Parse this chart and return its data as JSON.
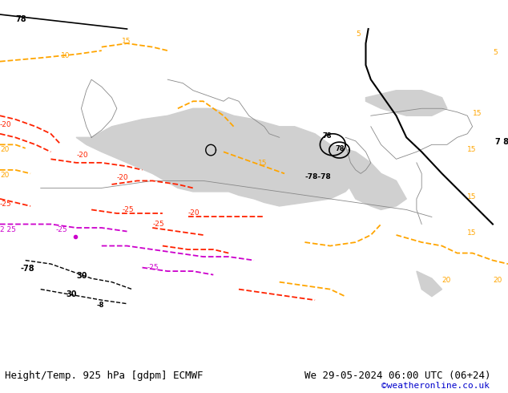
{
  "title_left": "Height/Temp. 925 hPa [gdpm] ECMWF",
  "title_right": "We 29-05-2024 06:00 UTC (06+24)",
  "credit": "©weatheronline.co.uk",
  "bg_color": "#c8e6a0",
  "land_color": "#c8e6a0",
  "sea_color": "#d8d8d8",
  "fig_width": 6.34,
  "fig_height": 4.9,
  "dpi": 100,
  "bottom_bar_color": "#ffffff",
  "title_fontsize": 9,
  "credit_color": "#0000cc"
}
